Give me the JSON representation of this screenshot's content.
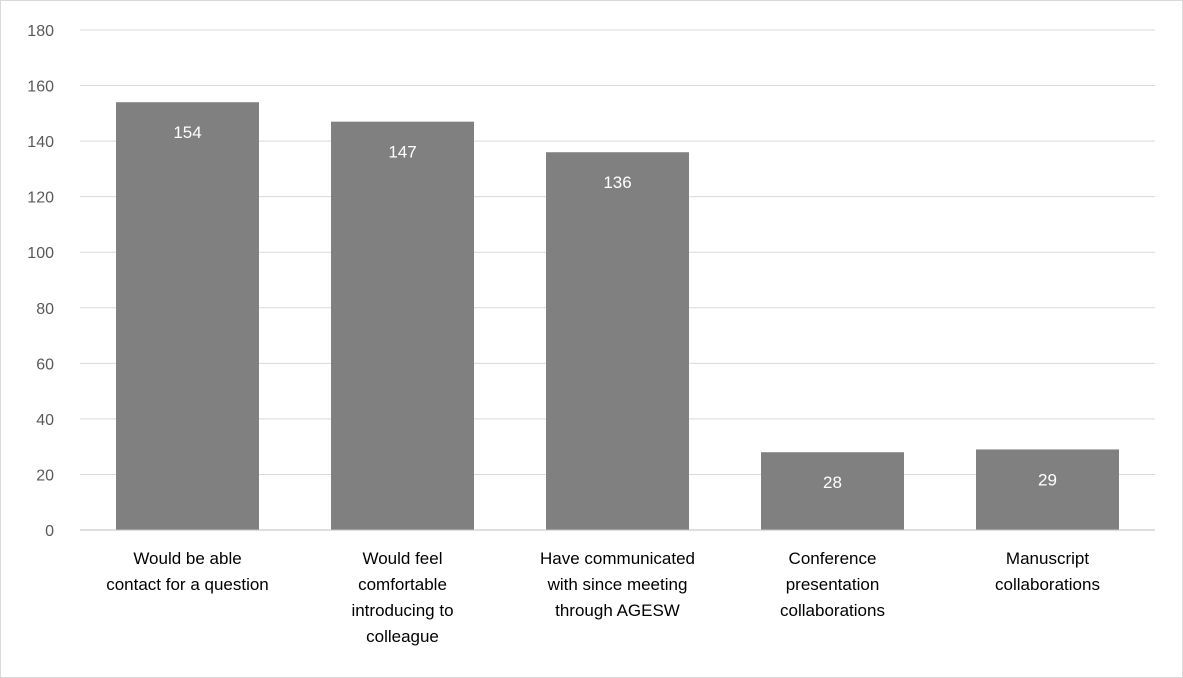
{
  "chart_data": {
    "type": "bar",
    "title": "",
    "xlabel": "",
    "ylabel": "",
    "categories": [
      [
        "Would be able",
        "contact for a question"
      ],
      [
        "Would feel",
        "comfortable",
        "introducing to",
        "colleague"
      ],
      [
        "Have communicated",
        "with since meeting",
        "through AGESW"
      ],
      [
        "Conference",
        "presentation",
        "collaborations"
      ],
      [
        "Manuscript",
        "collaborations"
      ]
    ],
    "values": [
      154,
      147,
      136,
      28,
      29
    ],
    "data_labels": [
      "154",
      "147",
      "136",
      "28",
      "29"
    ],
    "ylim": [
      0,
      180
    ],
    "yticks": [
      0,
      20,
      40,
      60,
      80,
      100,
      120,
      140,
      160,
      180
    ],
    "grid": true,
    "legend": "none",
    "colors": {
      "bar": "#808080",
      "grid": "#d9d9d9",
      "axis": "#bfbfbf",
      "tick_text": "#595959",
      "data_label": "#ffffff"
    }
  }
}
